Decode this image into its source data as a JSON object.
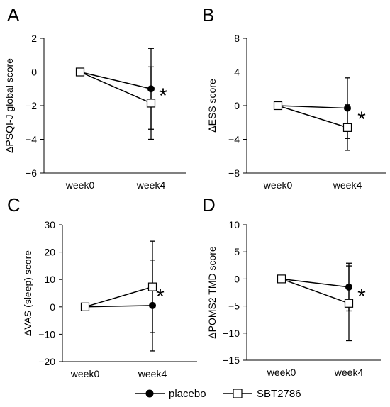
{
  "chart_data": [
    {
      "panel_label": "A",
      "type": "line",
      "title": "",
      "xlabel": "",
      "ylabel": "ΔPSQI-J global score",
      "categories": [
        "week0",
        "week4"
      ],
      "ylim": [
        -6,
        2
      ],
      "yticks": [
        2,
        0,
        -2,
        -4,
        -6
      ],
      "series": [
        {
          "name": "placebo",
          "values": [
            0,
            -1.0
          ],
          "error": [
            0,
            2.4
          ],
          "marker": "filled-circle"
        },
        {
          "name": "SBT2786",
          "values": [
            0,
            -1.85
          ],
          "error": [
            0,
            2.15
          ],
          "marker": "open-square"
        }
      ],
      "annotation": "*",
      "grid": false
    },
    {
      "panel_label": "B",
      "type": "line",
      "title": "",
      "xlabel": "",
      "ylabel": "ΔESS score",
      "categories": [
        "week0",
        "week4"
      ],
      "ylim": [
        -8,
        8
      ],
      "yticks": [
        8,
        4,
        0,
        -4,
        -8
      ],
      "series": [
        {
          "name": "placebo",
          "values": [
            0,
            -0.3
          ],
          "error": [
            0,
            3.6
          ],
          "marker": "filled-circle"
        },
        {
          "name": "SBT2786",
          "values": [
            0,
            -2.6
          ],
          "error": [
            0,
            2.7
          ],
          "marker": "open-square"
        }
      ],
      "annotation": "*",
      "grid": false
    },
    {
      "panel_label": "C",
      "type": "line",
      "title": "",
      "xlabel": "",
      "ylabel": "ΔVAS (sleep) score",
      "categories": [
        "week0",
        "week4"
      ],
      "ylim": [
        -20,
        30
      ],
      "yticks": [
        30,
        20,
        10,
        0,
        -10,
        -20
      ],
      "series": [
        {
          "name": "placebo",
          "values": [
            0,
            0.5
          ],
          "error": [
            0,
            16.6
          ],
          "marker": "filled-circle"
        },
        {
          "name": "SBT2786",
          "values": [
            0,
            7.3
          ],
          "error": [
            0,
            16.7
          ],
          "marker": "open-square"
        }
      ],
      "annotation": "*",
      "grid": false
    },
    {
      "panel_label": "D",
      "type": "line",
      "title": "",
      "xlabel": "",
      "ylabel": "ΔPOMS2 TMD score",
      "categories": [
        "week0",
        "week4"
      ],
      "ylim": [
        -15,
        10
      ],
      "yticks": [
        10,
        5,
        0,
        -5,
        -10,
        -15
      ],
      "series": [
        {
          "name": "placebo",
          "values": [
            0,
            -1.5
          ],
          "error": [
            0,
            4.4
          ],
          "marker": "filled-circle"
        },
        {
          "name": "SBT2786",
          "values": [
            0,
            -4.5
          ],
          "error": [
            0,
            6.9
          ],
          "marker": "open-square"
        }
      ],
      "annotation": "*",
      "grid": false
    }
  ],
  "legend": {
    "placement": "bottom",
    "items": [
      {
        "label": "placebo",
        "marker": "filled-circle"
      },
      {
        "label": "SBT2786",
        "marker": "open-square"
      }
    ]
  },
  "colors": {
    "ink": "#000000",
    "background": "#ffffff"
  }
}
